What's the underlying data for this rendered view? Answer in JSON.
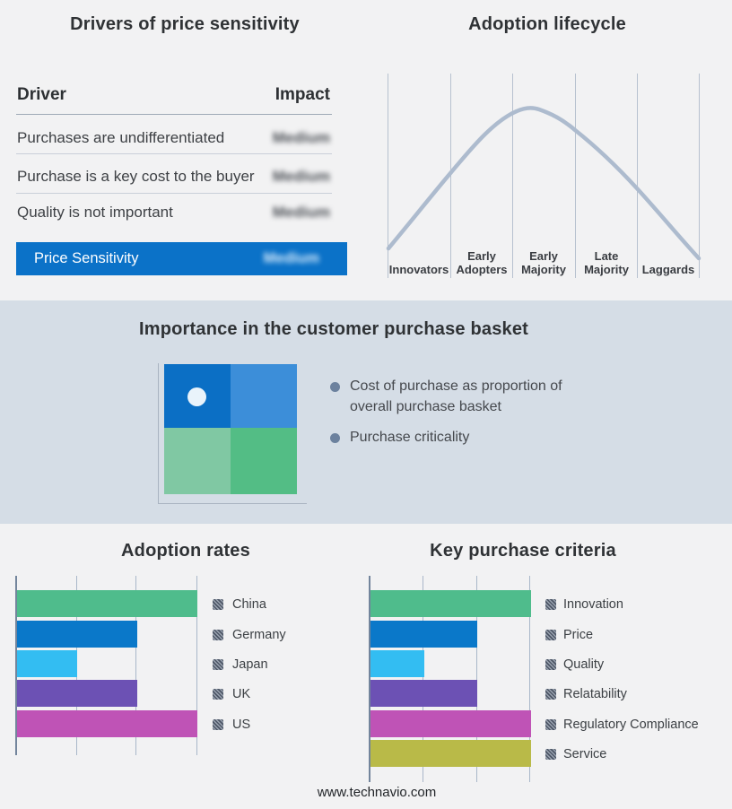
{
  "chart_data": [
    {
      "type": "table",
      "title": "Drivers of price sensitivity",
      "columns": [
        "Driver",
        "Impact"
      ],
      "rows": [
        [
          "Purchases are undifferentiated",
          "Medium"
        ],
        [
          "Purchase is a key cost to the buyer",
          "Medium"
        ],
        [
          "Quality is not important",
          "Medium"
        ]
      ],
      "highlight_row": [
        "Price Sensitivity",
        "Medium"
      ],
      "highlight_color": "#0b72c8",
      "note": "impact values appear blurred in the source image"
    },
    {
      "type": "line",
      "title": "Adoption lifecycle",
      "categories": [
        "Innovators",
        "Early Adopters",
        "Early Majority",
        "Late Majority",
        "Laggards"
      ],
      "description": "Unlabeled bell curve rising from Innovators, peaking in Early Majority, falling to Laggards",
      "curve_color": "#adbbce",
      "grid": "vertical category separators only, no y-axis"
    },
    {
      "type": "bar",
      "title": "Adoption rates",
      "orientation": "horizontal",
      "categories": [
        "China",
        "Germany",
        "Japan",
        "UK",
        "US"
      ],
      "values": [
        3,
        2,
        1,
        2,
        3
      ],
      "xlim": [
        0,
        3
      ],
      "x_ticks_labeled": false,
      "legend_position": "right",
      "bar_colors": [
        "#4fbc8c",
        "#0a78c9",
        "#33bdf2",
        "#6c51b4",
        "#bf53b6"
      ]
    },
    {
      "type": "bar",
      "title": "Key purchase criteria",
      "orientation": "horizontal",
      "categories": [
        "Innovation",
        "Price",
        "Quality",
        "Relatability",
        "Regulatory Compliance",
        "Service"
      ],
      "values": [
        3,
        2,
        1,
        2,
        3,
        3
      ],
      "xlim": [
        0,
        3
      ],
      "x_ticks_labeled": false,
      "legend_position": "right",
      "bar_colors": [
        "#4fbc8c",
        "#0a78c9",
        "#33bdf2",
        "#6c51b4",
        "#bf53b6",
        "#b9ba48"
      ]
    }
  ],
  "basket": {
    "title": "Importance in the customer purchase basket",
    "bullets": [
      "Cost of purchase as proportion of overall purchase basket",
      "Purchase criticality"
    ],
    "band_color": "#d5dde6",
    "quadrant_colors": {
      "top_left": "#0b6fc5",
      "top_right": "#3c8ed9",
      "bottom_left": "#80c8a3",
      "bottom_right": "#53bd85"
    },
    "marker": "white dot in top-left quadrant"
  },
  "footer": {
    "url": "www.technavio.com"
  }
}
